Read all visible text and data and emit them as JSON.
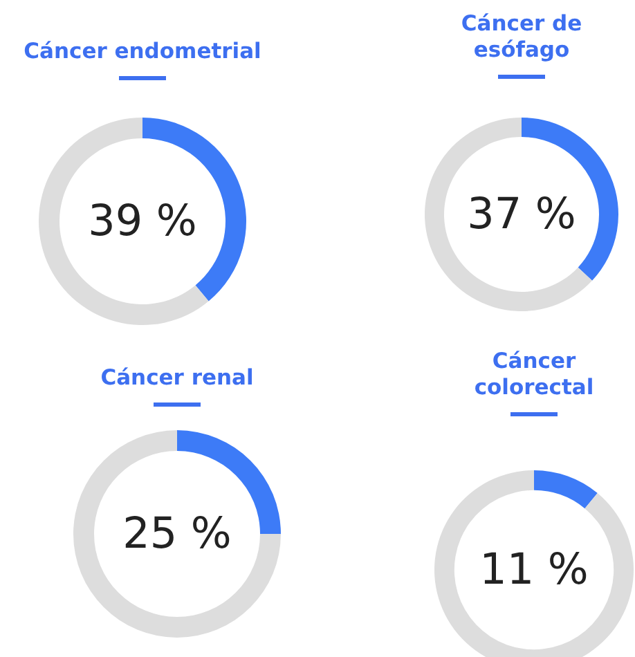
{
  "chart_data": [
    {
      "type": "donut",
      "title": "Cáncer endometrial",
      "categories": [
        null,
        null
      ],
      "values": [
        39,
        61
      ],
      "colors": [
        "#3d7bf7",
        "#dddddd"
      ],
      "value_labels": [
        "39 %",
        null
      ]
    },
    {
      "type": "donut",
      "title": "Cáncer de esófago",
      "categories": [
        null,
        null
      ],
      "values": [
        37,
        63
      ],
      "colors": [
        "#3d7bf7",
        "#dddddd"
      ],
      "value_labels": [
        "37 %",
        null
      ]
    },
    {
      "type": "donut",
      "title": "Cáncer renal",
      "categories": [
        null,
        null
      ],
      "values": [
        25,
        75
      ],
      "colors": [
        "#3d7bf7",
        "#dddddd"
      ],
      "value_labels": [
        "25 %",
        null
      ]
    },
    {
      "type": "donut",
      "title": "Cáncer colorectal",
      "categories": [
        null,
        null
      ],
      "values": [
        11,
        89
      ],
      "colors": [
        "#3d7bf7",
        "#dddddd"
      ],
      "value_labels": [
        "11 %",
        null
      ]
    }
  ]
}
